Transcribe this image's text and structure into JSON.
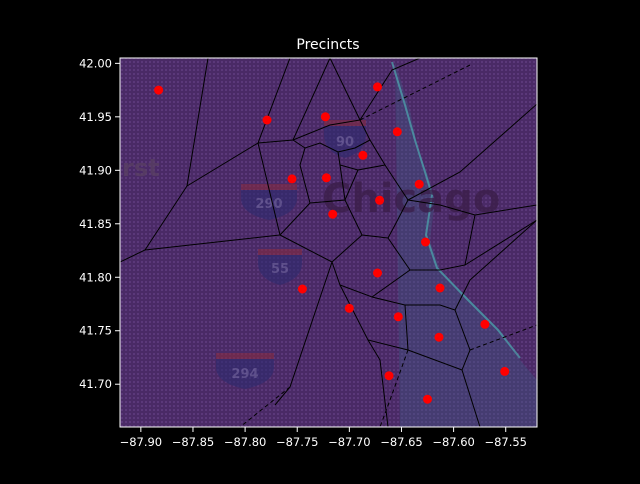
{
  "chart_data": {
    "type": "scatter",
    "title": "Precincts",
    "xlabel": "",
    "ylabel": "",
    "xlim": [
      -87.92,
      -87.52
    ],
    "ylim": [
      41.66,
      42.005
    ],
    "x_ticks": [
      -87.9,
      -87.85,
      -87.8,
      -87.75,
      -87.7,
      -87.65,
      -87.6,
      -87.55
    ],
    "x_tick_labels": [
      "−87.90",
      "−87.85",
      "−87.80",
      "−87.75",
      "−87.70",
      "−87.65",
      "−87.60",
      "−87.55"
    ],
    "y_ticks": [
      41.7,
      41.75,
      41.8,
      41.85,
      41.9,
      41.95,
      42.0
    ],
    "y_tick_labels": [
      "41.70",
      "41.75",
      "41.80",
      "41.85",
      "41.90",
      "41.95",
      "42.00"
    ],
    "grid": false,
    "background": "map tiles overlaid with Voronoi precinct boundaries",
    "map_labels": [
      "Chicago",
      "rst"
    ],
    "highway_shields": [
      "90",
      "290",
      "55",
      "294"
    ],
    "point_color": "#ff0000",
    "points": [
      {
        "x": -87.883,
        "y": 41.975
      },
      {
        "x": -87.779,
        "y": 41.947
      },
      {
        "x": -87.723,
        "y": 41.95
      },
      {
        "x": -87.673,
        "y": 41.978
      },
      {
        "x": -87.654,
        "y": 41.936
      },
      {
        "x": -87.687,
        "y": 41.914
      },
      {
        "x": -87.755,
        "y": 41.892
      },
      {
        "x": -87.722,
        "y": 41.893
      },
      {
        "x": -87.633,
        "y": 41.887
      },
      {
        "x": -87.671,
        "y": 41.872
      },
      {
        "x": -87.716,
        "y": 41.859
      },
      {
        "x": -87.627,
        "y": 41.833
      },
      {
        "x": -87.673,
        "y": 41.804
      },
      {
        "x": -87.745,
        "y": 41.789
      },
      {
        "x": -87.613,
        "y": 41.79
      },
      {
        "x": -87.7,
        "y": 41.771
      },
      {
        "x": -87.653,
        "y": 41.763
      },
      {
        "x": -87.57,
        "y": 41.756
      },
      {
        "x": -87.614,
        "y": 41.744
      },
      {
        "x": -87.551,
        "y": 41.712
      },
      {
        "x": -87.662,
        "y": 41.708
      },
      {
        "x": -87.625,
        "y": 41.686
      }
    ]
  }
}
